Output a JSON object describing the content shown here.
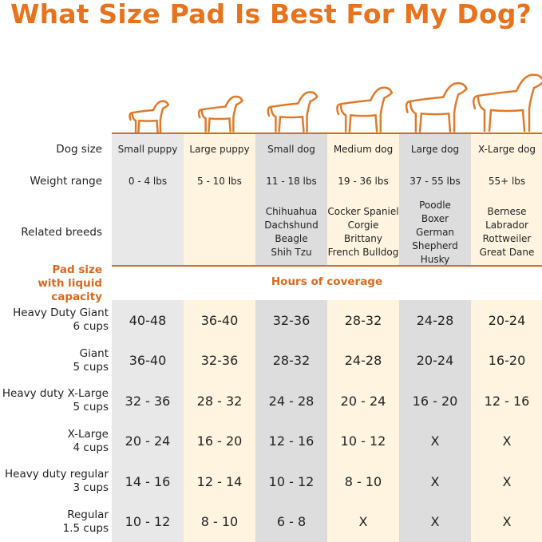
{
  "title": "What Size Pad Is Best For My Dog?",
  "colors": {
    "accent": "#e8731c",
    "gray": "#e8e8e8",
    "dark_gray": "#dddddd",
    "cream": "#fff4e0"
  },
  "icons": [
    "puppy-small-icon",
    "puppy-large-icon",
    "dog-small-icon",
    "dog-medium-icon",
    "dog-large-icon",
    "dog-xlarge-icon"
  ],
  "rows": {
    "dog_size": "Dog size",
    "weight_range": "Weight range",
    "related_breeds": "Related breeds"
  },
  "columns": [
    {
      "size": "Small puppy",
      "weight": "0 - 4 lbs",
      "breeds": []
    },
    {
      "size": "Large puppy",
      "weight": "5 - 10 lbs",
      "breeds": []
    },
    {
      "size": "Small dog",
      "weight": "11 - 18 lbs",
      "breeds": [
        "Chihuahua",
        "Dachshund",
        "Beagle",
        "Shih Tzu"
      ]
    },
    {
      "size": "Medium dog",
      "weight": "19 - 36 lbs",
      "breeds": [
        "Cocker Spaniel",
        "Corgie",
        "Brittany",
        "French Bulldog"
      ]
    },
    {
      "size": "Large dog",
      "weight": "37 - 55 lbs",
      "breeds": [
        "Poodle",
        "Boxer",
        "German",
        "Shepherd",
        "Husky"
      ]
    },
    {
      "size": "X-Large dog",
      "weight": "55+ lbs",
      "breeds": [
        "Bernese",
        "Labrador",
        "Rottweiler",
        "Great Dane"
      ]
    }
  ],
  "pad_header": {
    "line1": "Pad size",
    "line2": "with liquid capacity",
    "hours": "Hours of coverage"
  },
  "pads": [
    {
      "name": "Heavy Duty Giant",
      "cups": "6 cups",
      "hours": [
        "40-48",
        "36-40",
        "32-36",
        "28-32",
        "24-28",
        "20-24"
      ]
    },
    {
      "name": "Giant",
      "cups": "5 cups",
      "hours": [
        "36-40",
        "32-36",
        "28-32",
        "24-28",
        "20-24",
        "16-20"
      ]
    },
    {
      "name": "Heavy duty X-Large",
      "cups": "5 cups",
      "hours": [
        "32 - 36",
        "28 - 32",
        "24 - 28",
        "20 - 24",
        "16 - 20",
        "12 - 16"
      ]
    },
    {
      "name": "X-Large",
      "cups": "4 cups",
      "hours": [
        "20 - 24",
        "16 - 20",
        "12 - 16",
        "10 - 12",
        "X",
        "X"
      ]
    },
    {
      "name": "Heavy duty regular",
      "cups": "3 cups",
      "hours": [
        "14 - 16",
        "12 - 14",
        "10 - 12",
        "8 - 10",
        "X",
        "X"
      ]
    },
    {
      "name": "Regular",
      "cups": "1.5 cups",
      "hours": [
        "10 - 12",
        "8 - 10",
        "6 - 8",
        "X",
        "X",
        "X"
      ]
    }
  ]
}
